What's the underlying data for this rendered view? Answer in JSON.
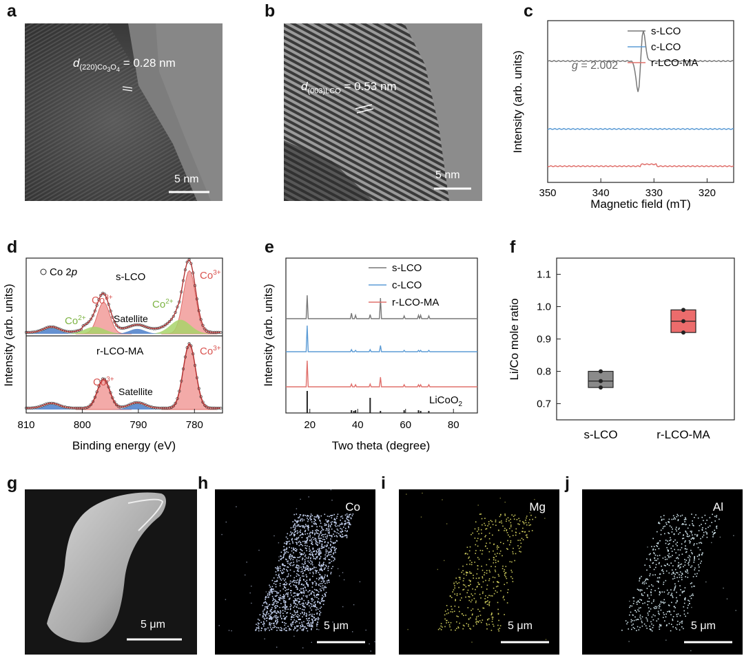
{
  "panel_labels": {
    "a": "a",
    "b": "b",
    "c": "c",
    "d": "d",
    "e": "e",
    "f": "f",
    "g": "g",
    "h": "h",
    "i": "i",
    "j": "j"
  },
  "tem": {
    "a": {
      "d_symbol": "d",
      "d_sub": "(220)Co",
      "d_sub2": "3",
      "d_sub3": "O",
      "d_sub4": "4",
      "value": " = 0.28 nm",
      "scale": "5 nm"
    },
    "b": {
      "d_symbol": "d",
      "d_sub": "(003)LCO",
      "value": " = 0.53 nm",
      "scale": "5 nm"
    }
  },
  "colors": {
    "s_lco": "#777777",
    "c_lco": "#5b9bd5",
    "r_lco_ma": "#e0706c",
    "fit_fill": "#f29c9a",
    "co2_fill": "#a8d36a",
    "bg_fill": "#e8a87c",
    "blue_fill": "#4a7ec9"
  },
  "chart_data": [
    {
      "type": "line",
      "id": "c",
      "xlabel": "Magnetic field (mT)",
      "ylabel": "Intensity (arb. units)",
      "xlim": [
        350,
        315
      ],
      "xticks": [
        350,
        340,
        330,
        320
      ],
      "annotation": {
        "g_symbol": "g",
        "g_value": " = 2.002"
      },
      "series": [
        {
          "name": "s-LCO",
          "offset": 0.75,
          "feature": {
            "center": 332.5,
            "amplitude": 0.2
          }
        },
        {
          "name": "c-LCO",
          "offset": 0.33
        },
        {
          "name": "r-LCO-MA",
          "offset": 0.1
        }
      ]
    },
    {
      "type": "line",
      "id": "d",
      "xlabel": "Binding energy (eV)",
      "ylabel": "Intensity (arb. units)",
      "xlim": [
        810,
        775
      ],
      "xticks": [
        810,
        800,
        790,
        780
      ],
      "legend": "Co 2p",
      "legend_italic": "p",
      "panels": [
        {
          "name": "s-LCO",
          "peaks": [
            {
              "label": "Co3+",
              "center": 780.9,
              "height": 0.9
            },
            {
              "label": "Co3+",
              "center": 796.2,
              "height": 0.45
            },
            {
              "label": "Co2+",
              "center": 782.5,
              "height": 0.2
            },
            {
              "label": "Co2+",
              "center": 797.8,
              "height": 0.1
            },
            {
              "label": "Satellite",
              "center": 790.2,
              "height": 0.07
            },
            {
              "label": "Satellite",
              "center": 805.5,
              "height": 0.08
            }
          ],
          "annotations": [
            "Co",
            "3+",
            "Co",
            "3+",
            "Co",
            "2+",
            "Co",
            "2+",
            "Satellite"
          ]
        },
        {
          "name": "r-LCO-MA",
          "peaks": [
            {
              "label": "Co3+",
              "center": 780.9,
              "height": 0.92
            },
            {
              "label": "Co3+",
              "center": 796.2,
              "height": 0.42
            },
            {
              "label": "Satellite",
              "center": 790.2,
              "height": 0.08
            },
            {
              "label": "Satellite",
              "center": 805.5,
              "height": 0.07
            }
          ]
        }
      ]
    },
    {
      "type": "line",
      "id": "e",
      "xlabel": "Two theta (degree)",
      "ylabel": "Intensity (arb. units)",
      "xlim": [
        10,
        90
      ],
      "xticks": [
        20,
        40,
        60,
        80
      ],
      "series": [
        {
          "name": "s-LCO"
        },
        {
          "name": "c-LCO"
        },
        {
          "name": "r-LCO-MA"
        }
      ],
      "reference": {
        "name": "LiCoO",
        "sub": "2",
        "peaks": [
          18.9,
          37.4,
          38.4,
          39.1,
          45.2,
          49.5,
          59.4,
          65.4,
          66.3,
          69.7
        ]
      },
      "peak_positions": [
        18.9,
        37.4,
        39.1,
        45.2,
        49.5,
        59.4,
        65.4,
        66.3,
        69.7
      ]
    },
    {
      "type": "box",
      "id": "f",
      "ylabel": "Li/Co mole ratio",
      "ylim": [
        0.65,
        1.15
      ],
      "yticks": [
        0.7,
        0.8,
        0.9,
        1.0,
        1.1
      ],
      "categories": [
        "s-LCO",
        "r-LCO-MA"
      ],
      "boxes": [
        {
          "name": "s-LCO",
          "points": [
            0.75,
            0.77,
            0.8
          ],
          "q1": 0.75,
          "median": 0.77,
          "q3": 0.8
        },
        {
          "name": "r-LCO-MA",
          "points": [
            0.92,
            0.955,
            0.99
          ],
          "q1": 0.92,
          "median": 0.955,
          "q3": 0.99
        }
      ]
    }
  ],
  "maps": {
    "g": {
      "scale": "5 μm"
    },
    "h": {
      "element": "Co",
      "scale": "5 μm",
      "dot_color": "#c9d6f5"
    },
    "i": {
      "element": "Mg",
      "scale": "5 μm",
      "dot_color": "#c9c65a"
    },
    "j": {
      "element": "Al",
      "scale": "5 μm",
      "dot_color": "#cfe3ea"
    }
  }
}
